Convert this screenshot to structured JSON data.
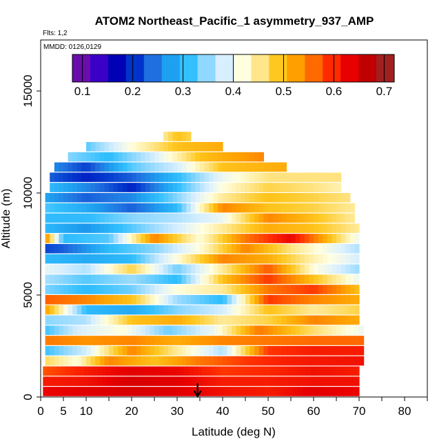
{
  "chart_data": {
    "type": "heatmap",
    "title": "ATOM2 Northeast_Pacific_1 asymmetry_937_AMP",
    "flights_note": "Flts: 1,2",
    "date_note": "MMDD: 0126,0129",
    "xlabel": "Latitude (deg N)",
    "ylabel": "Altitude (m)",
    "xlim": [
      0,
      85
    ],
    "ylim": [
      0,
      17500
    ],
    "x_ticks": [
      0,
      5,
      10,
      20,
      30,
      40,
      50,
      60,
      70,
      80
    ],
    "y_ticks": [
      0,
      5000,
      10000,
      15000
    ],
    "marker_latitude": 34.5,
    "colorbar": {
      "range": [
        0.08,
        0.72
      ],
      "ticks": [
        0.1,
        0.2,
        0.3,
        0.4,
        0.5,
        0.6,
        0.7
      ],
      "colors": [
        "#6a0dad",
        "#3b00c8",
        "#0000b4",
        "#0033cc",
        "#1f6fe0",
        "#1ea0f0",
        "#33c0ff",
        "#8fd8ff",
        "#d8efff",
        "#ffffe0",
        "#ffe68a",
        "#ffc820",
        "#ff9f00",
        "#ff6a00",
        "#ff2a00",
        "#e80000",
        "#c00000",
        "#a02020"
      ]
    },
    "rows": [
      {
        "alt": 250,
        "x0": 0.5,
        "x1": 70,
        "cx": [
          0,
          10,
          20,
          30,
          40,
          50,
          60,
          70
        ],
        "cv": [
          0.64,
          0.65,
          0.66,
          0.65,
          0.63,
          0.62,
          0.65,
          0.64
        ]
      },
      {
        "alt": 750,
        "x0": 0.5,
        "x1": 70,
        "cx": [
          0,
          10,
          20,
          30,
          40,
          50,
          60,
          70
        ],
        "cv": [
          0.62,
          0.63,
          0.66,
          0.65,
          0.62,
          0.62,
          0.63,
          0.63
        ]
      },
      {
        "alt": 1250,
        "x0": 0.5,
        "x1": 70,
        "cx": [
          0,
          10,
          20,
          30,
          40,
          50,
          60,
          70
        ],
        "cv": [
          0.58,
          0.62,
          0.65,
          0.64,
          0.6,
          0.61,
          0.63,
          0.62
        ]
      },
      {
        "alt": 1750,
        "x0": 1,
        "x1": 71,
        "cx": [
          0,
          8,
          15,
          25,
          35,
          45,
          55,
          71
        ],
        "cv": [
          0.48,
          0.42,
          0.55,
          0.5,
          0.56,
          0.6,
          0.62,
          0.63
        ]
      },
      {
        "alt": 2250,
        "x0": 1,
        "x1": 71,
        "cx": [
          0,
          10,
          20,
          30,
          40,
          50,
          60,
          71
        ],
        "cv": [
          0.3,
          0.38,
          0.55,
          0.45,
          0.36,
          0.6,
          0.62,
          0.62
        ]
      },
      {
        "alt": 2750,
        "x0": 1,
        "x1": 71,
        "cx": [
          0,
          10,
          20,
          30,
          40,
          50,
          60,
          71
        ],
        "cv": [
          0.56,
          0.54,
          0.55,
          0.52,
          0.55,
          0.56,
          0.57,
          0.57
        ]
      },
      {
        "alt": 3250,
        "x0": 1,
        "x1": 71,
        "cx": [
          0,
          8,
          18,
          28,
          38,
          48,
          58,
          71
        ],
        "cv": [
          0.3,
          0.38,
          0.42,
          0.33,
          0.4,
          0.56,
          0.48,
          0.4
        ]
      },
      {
        "alt": 3750,
        "x0": 1,
        "x1": 70,
        "cx": [
          0,
          10,
          20,
          30,
          40,
          50,
          60,
          70
        ],
        "cv": [
          0.34,
          0.36,
          0.5,
          0.52,
          0.45,
          0.48,
          0.55,
          0.52
        ]
      },
      {
        "alt": 4250,
        "x0": 1,
        "x1": 70,
        "cx": [
          0,
          10,
          20,
          30,
          40,
          50,
          60,
          70
        ],
        "cv": [
          0.56,
          0.3,
          0.28,
          0.34,
          0.38,
          0.5,
          0.45,
          0.48
        ]
      },
      {
        "alt": 4750,
        "x0": 1,
        "x1": 70,
        "cx": [
          0,
          10,
          20,
          30,
          40,
          50,
          60,
          70
        ],
        "cv": [
          0.58,
          0.55,
          0.5,
          0.35,
          0.3,
          0.6,
          0.55,
          0.52
        ]
      },
      {
        "alt": 5250,
        "x0": 1,
        "x1": 70,
        "cx": [
          0,
          10,
          20,
          30,
          40,
          50,
          60,
          70
        ],
        "cv": [
          0.34,
          0.3,
          0.33,
          0.42,
          0.45,
          0.56,
          0.6,
          0.5
        ]
      },
      {
        "alt": 5750,
        "x0": 1,
        "x1": 70,
        "cx": [
          0,
          10,
          20,
          30,
          40,
          50,
          60,
          70
        ],
        "cv": [
          0.36,
          0.32,
          0.35,
          0.3,
          0.5,
          0.6,
          0.5,
          0.4
        ]
      },
      {
        "alt": 6250,
        "x0": 1,
        "x1": 70,
        "cx": [
          0,
          10,
          20,
          30,
          40,
          50,
          60,
          70
        ],
        "cv": [
          0.4,
          0.36,
          0.48,
          0.33,
          0.45,
          0.58,
          0.42,
          0.35
        ]
      },
      {
        "alt": 6750,
        "x0": 1,
        "x1": 70,
        "cx": [
          0,
          10,
          20,
          30,
          40,
          50,
          60,
          70
        ],
        "cv": [
          0.3,
          0.28,
          0.3,
          0.42,
          0.55,
          0.52,
          0.44,
          0.38
        ]
      },
      {
        "alt": 7250,
        "x0": 1,
        "x1": 70,
        "cx": [
          0,
          5,
          15,
          25,
          35,
          45,
          55,
          70
        ],
        "cv": [
          0.2,
          0.22,
          0.3,
          0.34,
          0.42,
          0.55,
          0.46,
          0.36
        ]
      },
      {
        "alt": 7750,
        "x0": 1,
        "x1": 70,
        "cx": [
          0,
          5,
          15,
          25,
          35,
          45,
          55,
          70
        ],
        "cv": [
          0.62,
          0.3,
          0.32,
          0.55,
          0.42,
          0.56,
          0.64,
          0.4
        ]
      },
      {
        "alt": 8250,
        "x0": 1,
        "x1": 70,
        "cx": [
          0,
          10,
          20,
          30,
          40,
          50,
          60,
          70
        ],
        "cv": [
          0.3,
          0.26,
          0.32,
          0.38,
          0.45,
          0.52,
          0.5,
          0.45
        ]
      },
      {
        "alt": 8750,
        "x0": 1,
        "x1": 69,
        "cx": [
          0,
          10,
          20,
          30,
          40,
          50,
          60,
          69
        ],
        "cv": [
          0.3,
          0.3,
          0.34,
          0.36,
          0.4,
          0.55,
          0.5,
          0.45
        ]
      },
      {
        "alt": 9250,
        "x0": 1,
        "x1": 69,
        "cx": [
          0,
          10,
          20,
          30,
          40,
          50,
          60,
          69
        ],
        "cv": [
          0.32,
          0.28,
          0.22,
          0.3,
          0.55,
          0.5,
          0.48,
          0.45
        ]
      },
      {
        "alt": 9750,
        "x0": 1,
        "x1": 68,
        "cx": [
          0,
          10,
          20,
          30,
          40,
          50,
          60,
          68
        ],
        "cv": [
          0.28,
          0.22,
          0.25,
          0.34,
          0.45,
          0.5,
          0.48,
          0.46
        ]
      },
      {
        "alt": 10250,
        "x0": 2,
        "x1": 66,
        "cx": [
          2,
          10,
          20,
          30,
          40,
          50,
          60,
          66
        ],
        "cv": [
          0.3,
          0.25,
          0.18,
          0.3,
          0.42,
          0.48,
          0.46,
          0.44
        ]
      },
      {
        "alt": 10750,
        "x0": 2,
        "x1": 66,
        "cx": [
          2,
          10,
          20,
          30,
          40,
          50,
          60,
          66
        ],
        "cv": [
          0.22,
          0.18,
          0.22,
          0.3,
          0.4,
          0.46,
          0.46,
          0.46
        ]
      },
      {
        "alt": 11250,
        "x0": 3,
        "x1": 54,
        "cx": [
          3,
          10,
          20,
          30,
          40,
          54
        ],
        "cv": [
          0.25,
          0.2,
          0.32,
          0.38,
          0.5,
          0.52
        ]
      },
      {
        "alt": 11750,
        "x0": 6,
        "x1": 49,
        "cx": [
          6,
          15,
          25,
          35,
          49
        ],
        "cv": [
          0.34,
          0.3,
          0.38,
          0.5,
          0.55
        ]
      },
      {
        "alt": 12250,
        "x0": 10,
        "x1": 40,
        "cx": [
          10,
          20,
          30,
          40
        ],
        "cv": [
          0.32,
          0.42,
          0.5,
          0.52
        ]
      },
      {
        "alt": 12750,
        "x0": 27,
        "x1": 33,
        "cx": [
          27,
          30,
          33
        ],
        "cv": [
          0.45,
          0.5,
          0.48
        ]
      }
    ]
  }
}
